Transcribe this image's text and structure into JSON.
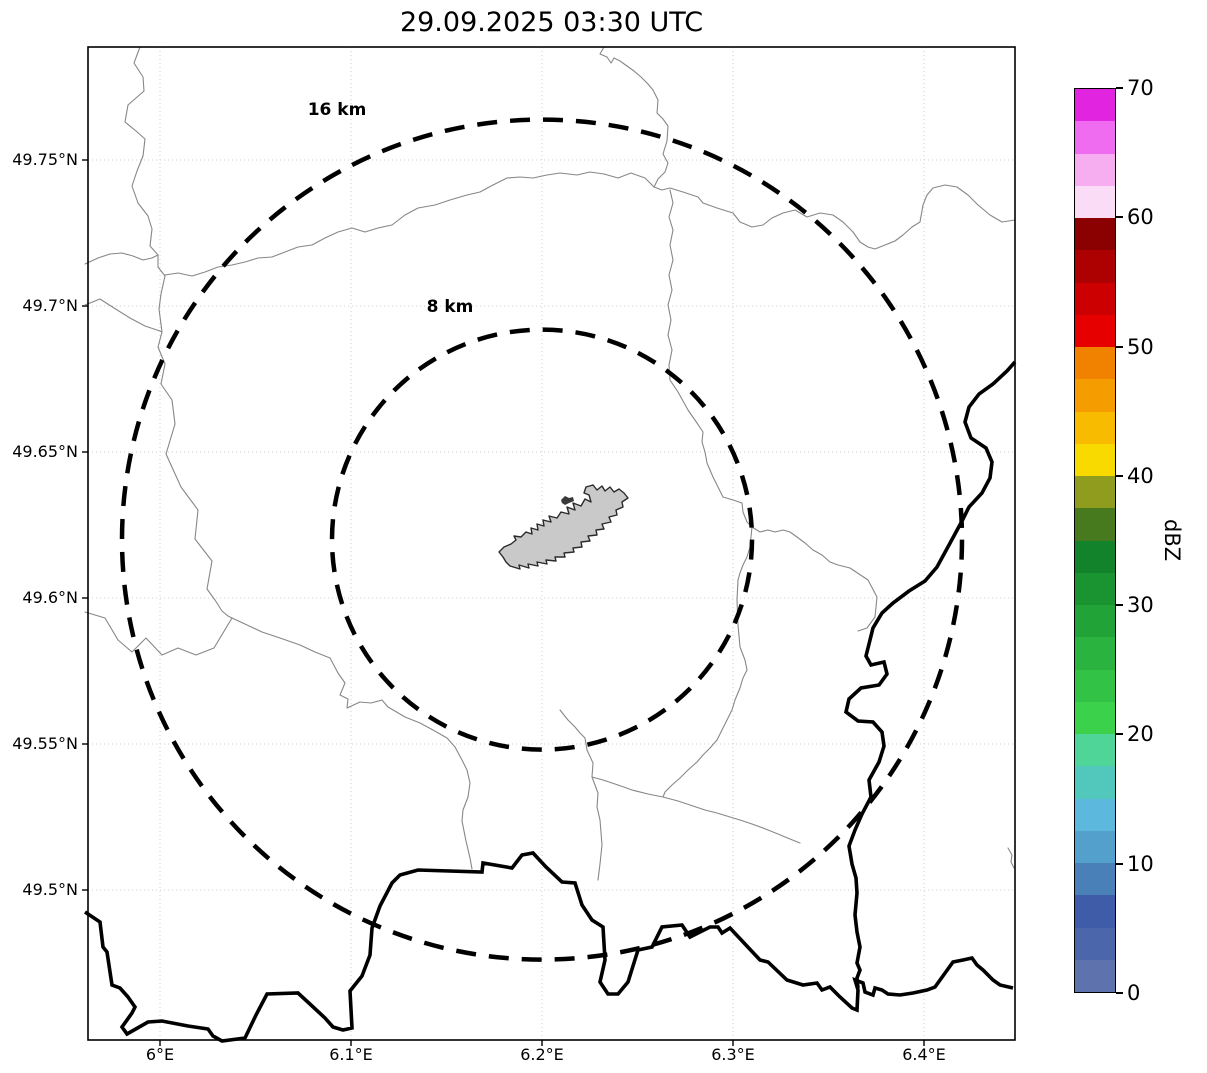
{
  "title": "29.09.2025 03:30 UTC",
  "chart_data": {
    "type": "map",
    "subtype": "radar-range-ring-map",
    "title": "29.09.2025 03:30 UTC",
    "x_axis": {
      "tick_labels": [
        "6°E",
        "6.1°E",
        "6.2°E",
        "6.3°E",
        "6.4°E"
      ],
      "tick_values": [
        6.0,
        6.1,
        6.2,
        6.3,
        6.4
      ],
      "range_deg_e": [
        5.96,
        6.45
      ]
    },
    "y_axis": {
      "tick_labels": [
        "49.75°N",
        "49.7°N",
        "49.65°N",
        "49.6°N",
        "49.55°N",
        "49.5°N"
      ],
      "tick_values": [
        49.75,
        49.7,
        49.65,
        49.6,
        49.55,
        49.5
      ],
      "range_deg_n": [
        49.45,
        49.79
      ]
    },
    "grid": true,
    "range_rings": [
      {
        "label": "16 km",
        "radius_km": 16
      },
      {
        "label": "8 km",
        "radius_km": 8
      }
    ],
    "ring_center": {
      "lon_deg_e": 6.2,
      "lat_deg_n": 49.62
    },
    "radar_echoes": "none visible",
    "colorbar": {
      "label": "dBZ",
      "min": 0,
      "max": 70,
      "tick_values": [
        0,
        10,
        20,
        30,
        40,
        50,
        60,
        70
      ],
      "bin_width_dbz": 2.5,
      "colors_bottom_to_top": [
        "#5e72ad",
        "#4b66aa",
        "#3f5ca8",
        "#4a80b8",
        "#53a0cd",
        "#5cb8dc",
        "#52c7bb",
        "#4fd598",
        "#3bd14b",
        "#32c245",
        "#2ab33e",
        "#22a338",
        "#1a9331",
        "#12832a",
        "#47791f",
        "#8f9c1d",
        "#f8d900",
        "#f8bb00",
        "#f59c00",
        "#f08200",
        "#e60000",
        "#cc0000",
        "#ad0000",
        "#8b0000",
        "#fbdcf7",
        "#f7aef0",
        "#ef6cf0",
        "#e024e0"
      ]
    },
    "style_colors": {
      "grid_line": "#cfcfcf",
      "thin_boundary_line": "#878787",
      "thick_border_line": "#000000",
      "ring_line": "#000000",
      "urban_area_fill": "#c9c9c9",
      "urban_area_outline": "#2b2b2b"
    }
  }
}
